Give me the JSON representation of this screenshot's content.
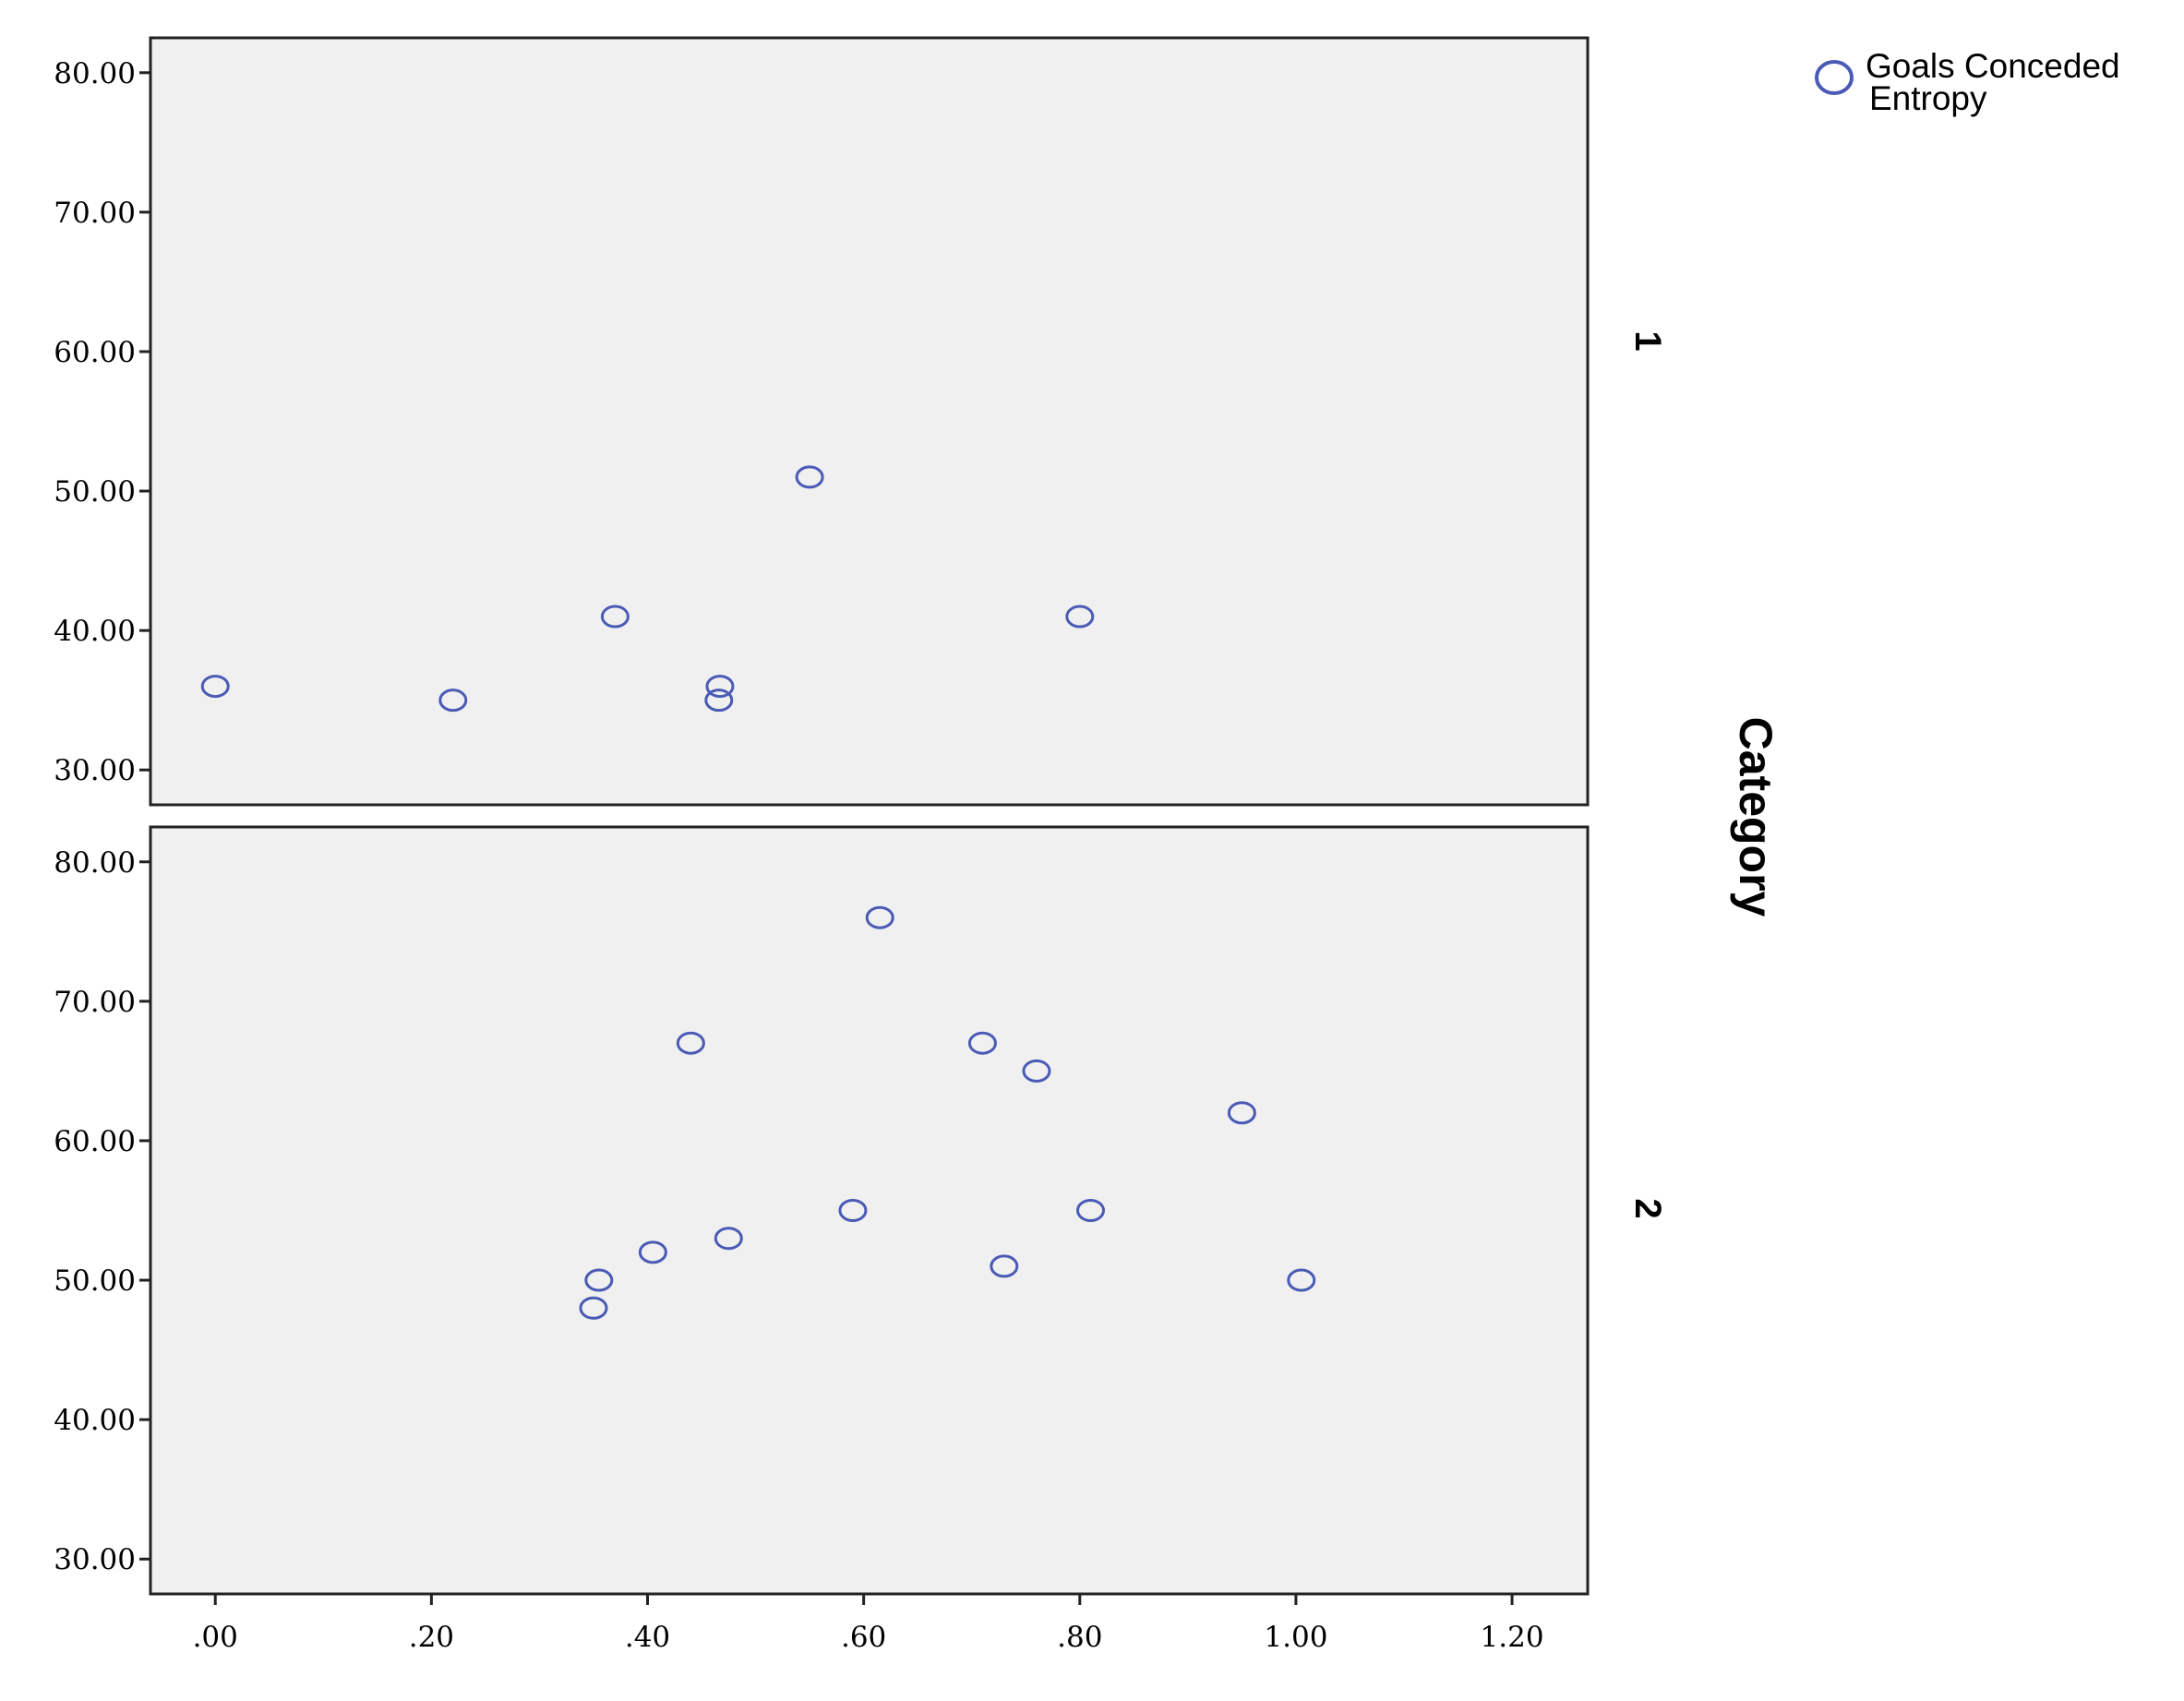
{
  "chart_data": {
    "type": "scatter",
    "facet_title": "Category",
    "legend": {
      "position": "top-right",
      "entry_lines": [
        "Goals Conceded",
        "Entropy"
      ],
      "marker": "open-circle"
    },
    "marker_color": "#4a5ab5",
    "panel_background": "#f0f0f0",
    "grid": false,
    "xlim": [
      -0.06,
      1.27
    ],
    "ylim": [
      27.5,
      82.5
    ],
    "x_ticks": [
      0,
      0.2,
      0.4,
      0.6,
      0.8,
      1.0,
      1.2
    ],
    "x_tick_labels": [
      ".00",
      ".20",
      ".40",
      ".60",
      ".80",
      "1.00",
      "1.20"
    ],
    "y_ticks": [
      30,
      40,
      50,
      60,
      70,
      80
    ],
    "y_tick_labels": [
      "30.00",
      "40.00",
      "50.00",
      "60.00",
      "70.00",
      "80.00"
    ],
    "panels": [
      {
        "label": "1",
        "points": [
          {
            "x": 0.0,
            "y": 36
          },
          {
            "x": 0.22,
            "y": 35
          },
          {
            "x": 0.37,
            "y": 41
          },
          {
            "x": 0.467,
            "y": 36
          },
          {
            "x": 0.466,
            "y": 35
          },
          {
            "x": 0.55,
            "y": 51
          },
          {
            "x": 0.8,
            "y": 41
          }
        ]
      },
      {
        "label": "2",
        "points": [
          {
            "x": 0.35,
            "y": 48
          },
          {
            "x": 0.355,
            "y": 50
          },
          {
            "x": 0.405,
            "y": 52
          },
          {
            "x": 0.44,
            "y": 67
          },
          {
            "x": 0.475,
            "y": 53
          },
          {
            "x": 0.59,
            "y": 55
          },
          {
            "x": 0.615,
            "y": 76
          },
          {
            "x": 0.71,
            "y": 67
          },
          {
            "x": 0.73,
            "y": 51
          },
          {
            "x": 0.76,
            "y": 65
          },
          {
            "x": 0.81,
            "y": 55
          },
          {
            "x": 0.95,
            "y": 62
          },
          {
            "x": 1.005,
            "y": 50
          }
        ]
      }
    ]
  }
}
